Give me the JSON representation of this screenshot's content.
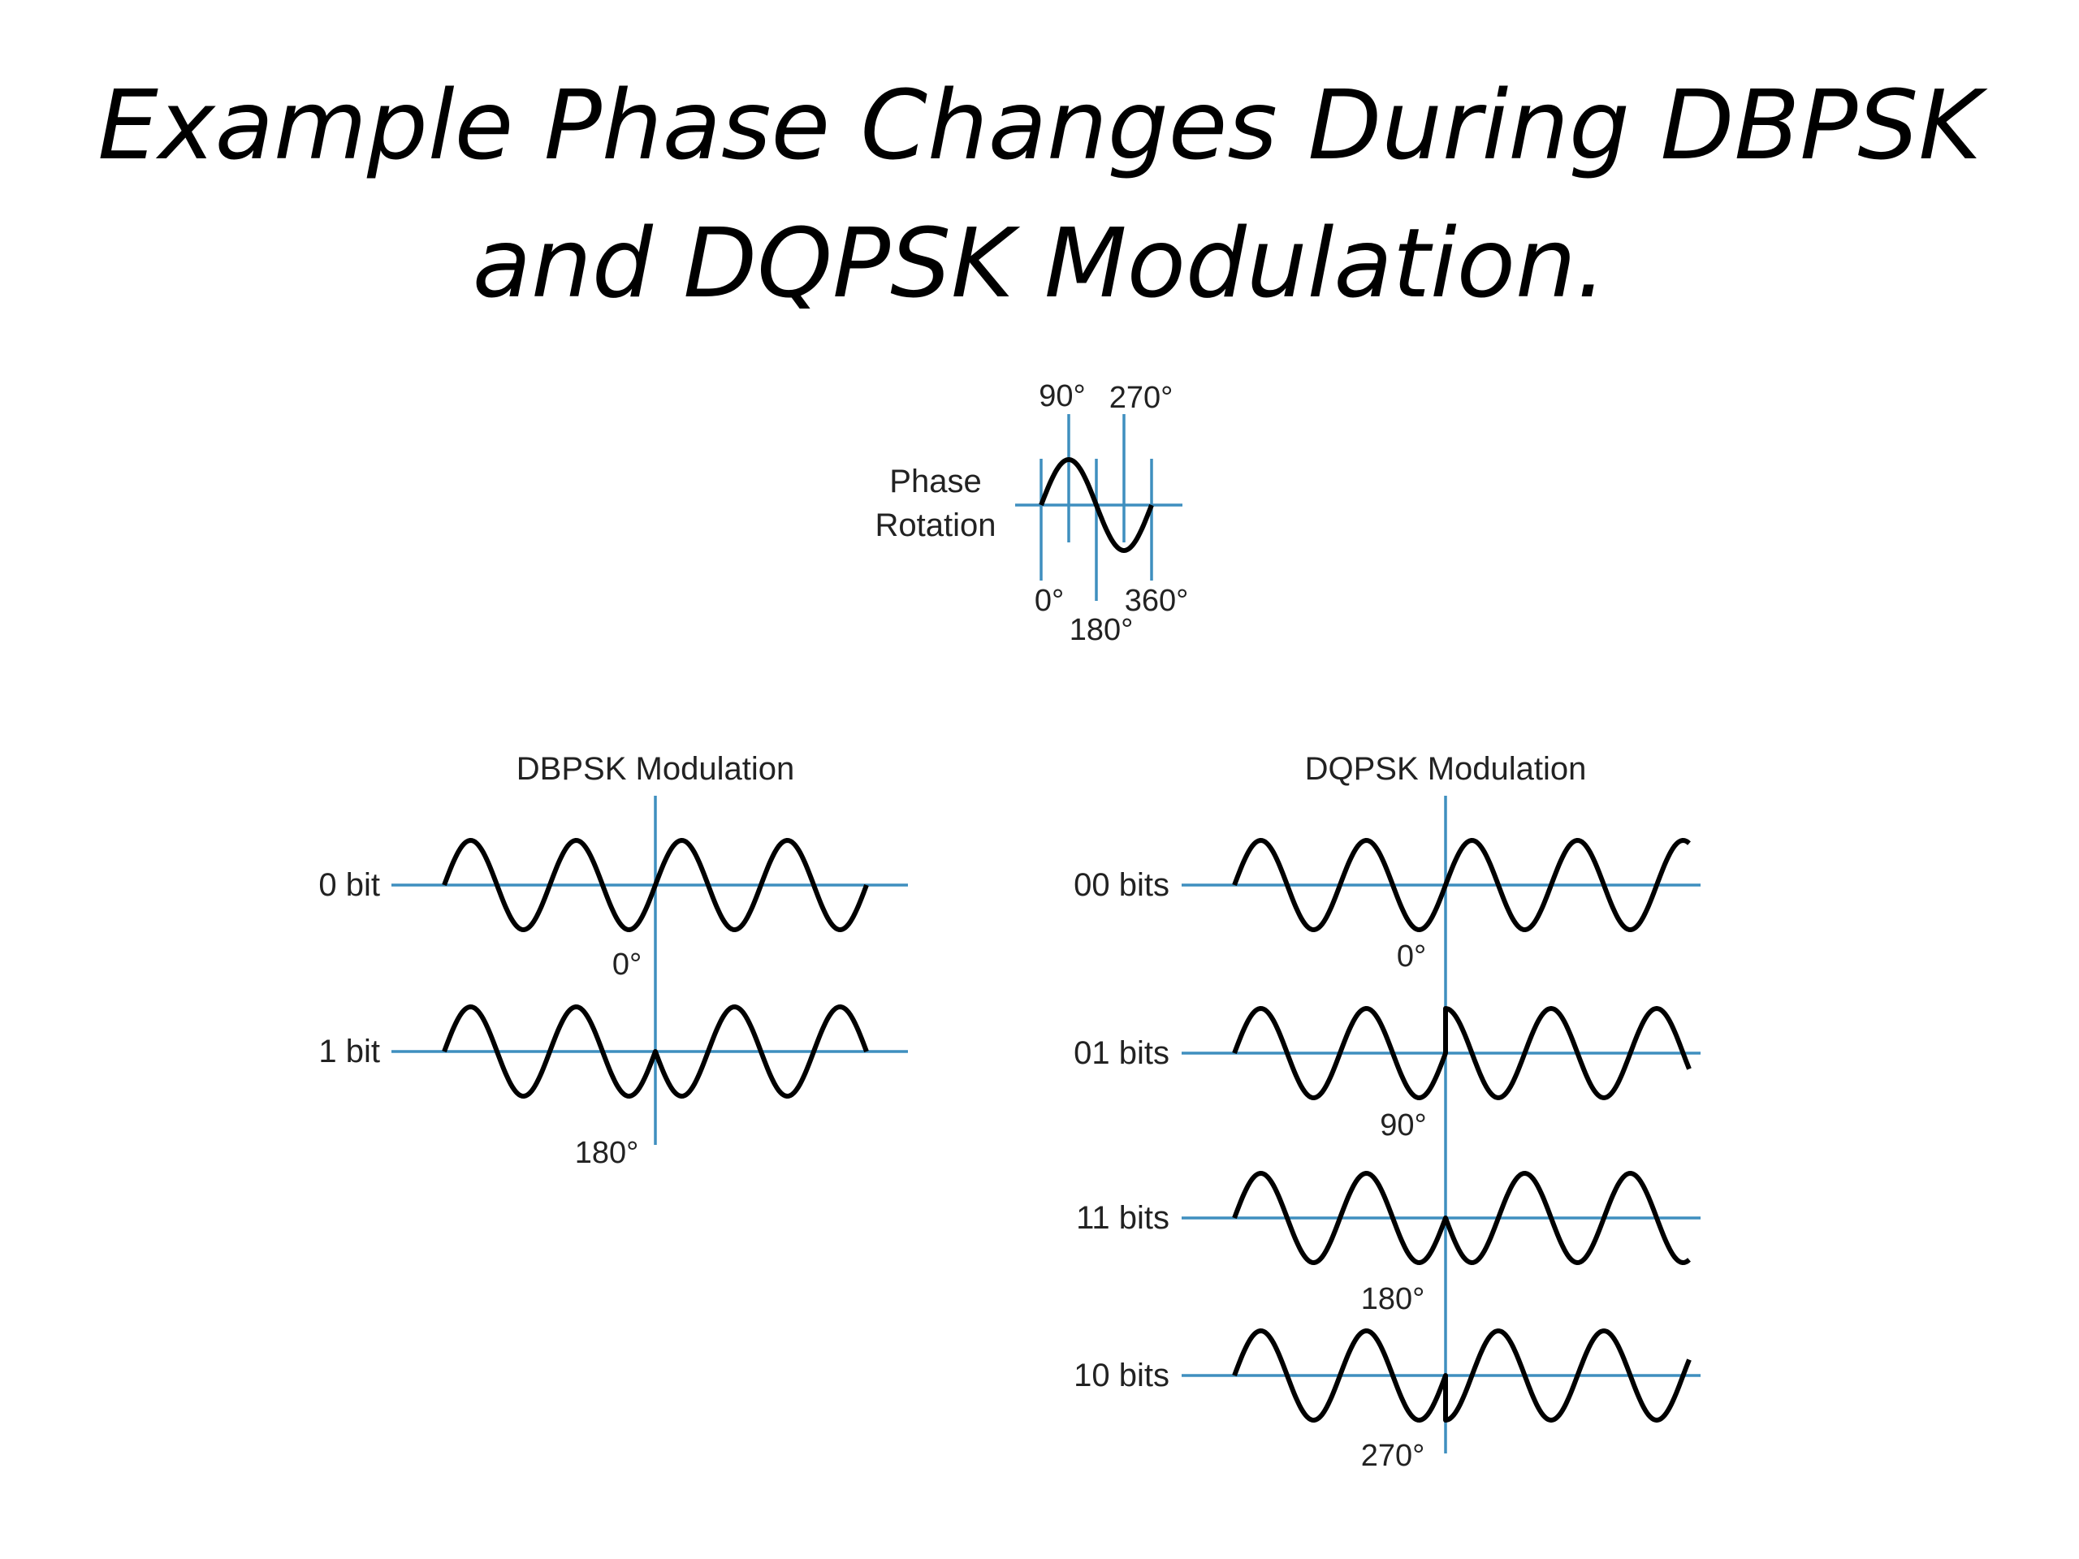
{
  "title": {
    "line1": "Example Phase Changes During DBPSK",
    "line2": "and DQPSK Modulation."
  },
  "colors": {
    "axis": "#3f8fbf",
    "wave": "#000000",
    "text": "#222222",
    "background": "#ffffff"
  },
  "phase_rotation": {
    "label_line1": "Phase",
    "label_line2": "Rotation",
    "tick_labels": [
      "90°",
      "270°",
      "0°",
      "360°",
      "180°"
    ]
  },
  "dbpsk": {
    "heading": "DBPSK Modulation",
    "rows": [
      {
        "label": "0 bit",
        "phase_label": "0°",
        "phase_deg": 0
      },
      {
        "label": "1 bit",
        "phase_label": "180°",
        "phase_deg": 180
      }
    ]
  },
  "dqpsk": {
    "heading": "DQPSK Modulation",
    "rows": [
      {
        "label": "00 bits",
        "phase_label": "0°",
        "phase_deg": 0
      },
      {
        "label": "01 bits",
        "phase_label": "90°",
        "phase_deg": 90
      },
      {
        "label": "11 bits",
        "phase_label": "180°",
        "phase_deg": 180
      },
      {
        "label": "10 bits",
        "phase_label": "270°",
        "phase_deg": 270
      }
    ]
  }
}
